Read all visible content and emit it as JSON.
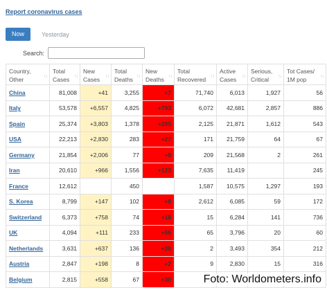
{
  "report_link": "Report coronavirus cases",
  "tabs": {
    "now": "Now",
    "yesterday": "Yesterday"
  },
  "search": {
    "label": "Search:",
    "value": "",
    "placeholder": ""
  },
  "table": {
    "headers": [
      "Country,\nOther",
      "Total\nCases",
      "New\nCases",
      "Total\nDeaths",
      "New\nDeaths",
      "Total\nRecovered",
      "Active\nCases",
      "Serious,\nCritical",
      "Tot Cases/\n1M pop"
    ],
    "rows": [
      {
        "country": "China",
        "total_cases": "81,008",
        "new_cases": "+41",
        "total_deaths": "3,255",
        "new_deaths": "+7",
        "total_recovered": "71,740",
        "active_cases": "6,013",
        "serious": "1,927",
        "per_million": "56"
      },
      {
        "country": "Italy",
        "total_cases": "53,578",
        "new_cases": "+6,557",
        "total_deaths": "4,825",
        "new_deaths": "+793",
        "total_recovered": "6,072",
        "active_cases": "42,681",
        "serious": "2,857",
        "per_million": "886"
      },
      {
        "country": "Spain",
        "total_cases": "25,374",
        "new_cases": "+3,803",
        "total_deaths": "1,378",
        "new_deaths": "+285",
        "total_recovered": "2,125",
        "active_cases": "21,871",
        "serious": "1,612",
        "per_million": "543"
      },
      {
        "country": "USA",
        "total_cases": "22,213",
        "new_cases": "+2,830",
        "total_deaths": "283",
        "new_deaths": "+27",
        "total_recovered": "171",
        "active_cases": "21,759",
        "serious": "64",
        "per_million": "67"
      },
      {
        "country": "Germany",
        "total_cases": "21,854",
        "new_cases": "+2,006",
        "total_deaths": "77",
        "new_deaths": "+9",
        "total_recovered": "209",
        "active_cases": "21,568",
        "serious": "2",
        "per_million": "261"
      },
      {
        "country": "Iran",
        "total_cases": "20,610",
        "new_cases": "+966",
        "total_deaths": "1,556",
        "new_deaths": "+123",
        "total_recovered": "7,635",
        "active_cases": "11,419",
        "serious": "",
        "per_million": "245"
      },
      {
        "country": "France",
        "total_cases": "12,612",
        "new_cases": "",
        "total_deaths": "450",
        "new_deaths": "",
        "total_recovered": "1,587",
        "active_cases": "10,575",
        "serious": "1,297",
        "per_million": "193"
      },
      {
        "country": "S. Korea",
        "total_cases": "8,799",
        "new_cases": "+147",
        "total_deaths": "102",
        "new_deaths": "+8",
        "total_recovered": "2,612",
        "active_cases": "6,085",
        "serious": "59",
        "per_million": "172"
      },
      {
        "country": "Switzerland",
        "total_cases": "6,373",
        "new_cases": "+758",
        "total_deaths": "74",
        "new_deaths": "+18",
        "total_recovered": "15",
        "active_cases": "6,284",
        "serious": "141",
        "per_million": "736"
      },
      {
        "country": "UK",
        "total_cases": "4,094",
        "new_cases": "+111",
        "total_deaths": "233",
        "new_deaths": "+56",
        "total_recovered": "65",
        "active_cases": "3,796",
        "serious": "20",
        "per_million": "60"
      },
      {
        "country": "Netherlands",
        "total_cases": "3,631",
        "new_cases": "+637",
        "total_deaths": "136",
        "new_deaths": "+30",
        "total_recovered": "2",
        "active_cases": "3,493",
        "serious": "354",
        "per_million": "212"
      },
      {
        "country": "Austria",
        "total_cases": "2,847",
        "new_cases": "+198",
        "total_deaths": "8",
        "new_deaths": "+2",
        "total_recovered": "9",
        "active_cases": "2,830",
        "serious": "15",
        "per_million": "316"
      },
      {
        "country": "Belgium",
        "total_cases": "2,815",
        "new_cases": "+558",
        "total_deaths": "67",
        "new_deaths": "+30",
        "total_recovered": "",
        "active_cases": "",
        "serious": "",
        "per_million": ""
      }
    ]
  },
  "watermark": "Foto: Worldometers.info",
  "colors": {
    "link": "#336699",
    "new_cases_bg": "#fff3c4",
    "new_deaths_bg": "#ff0000",
    "tab_active": "#3a7ec1"
  }
}
